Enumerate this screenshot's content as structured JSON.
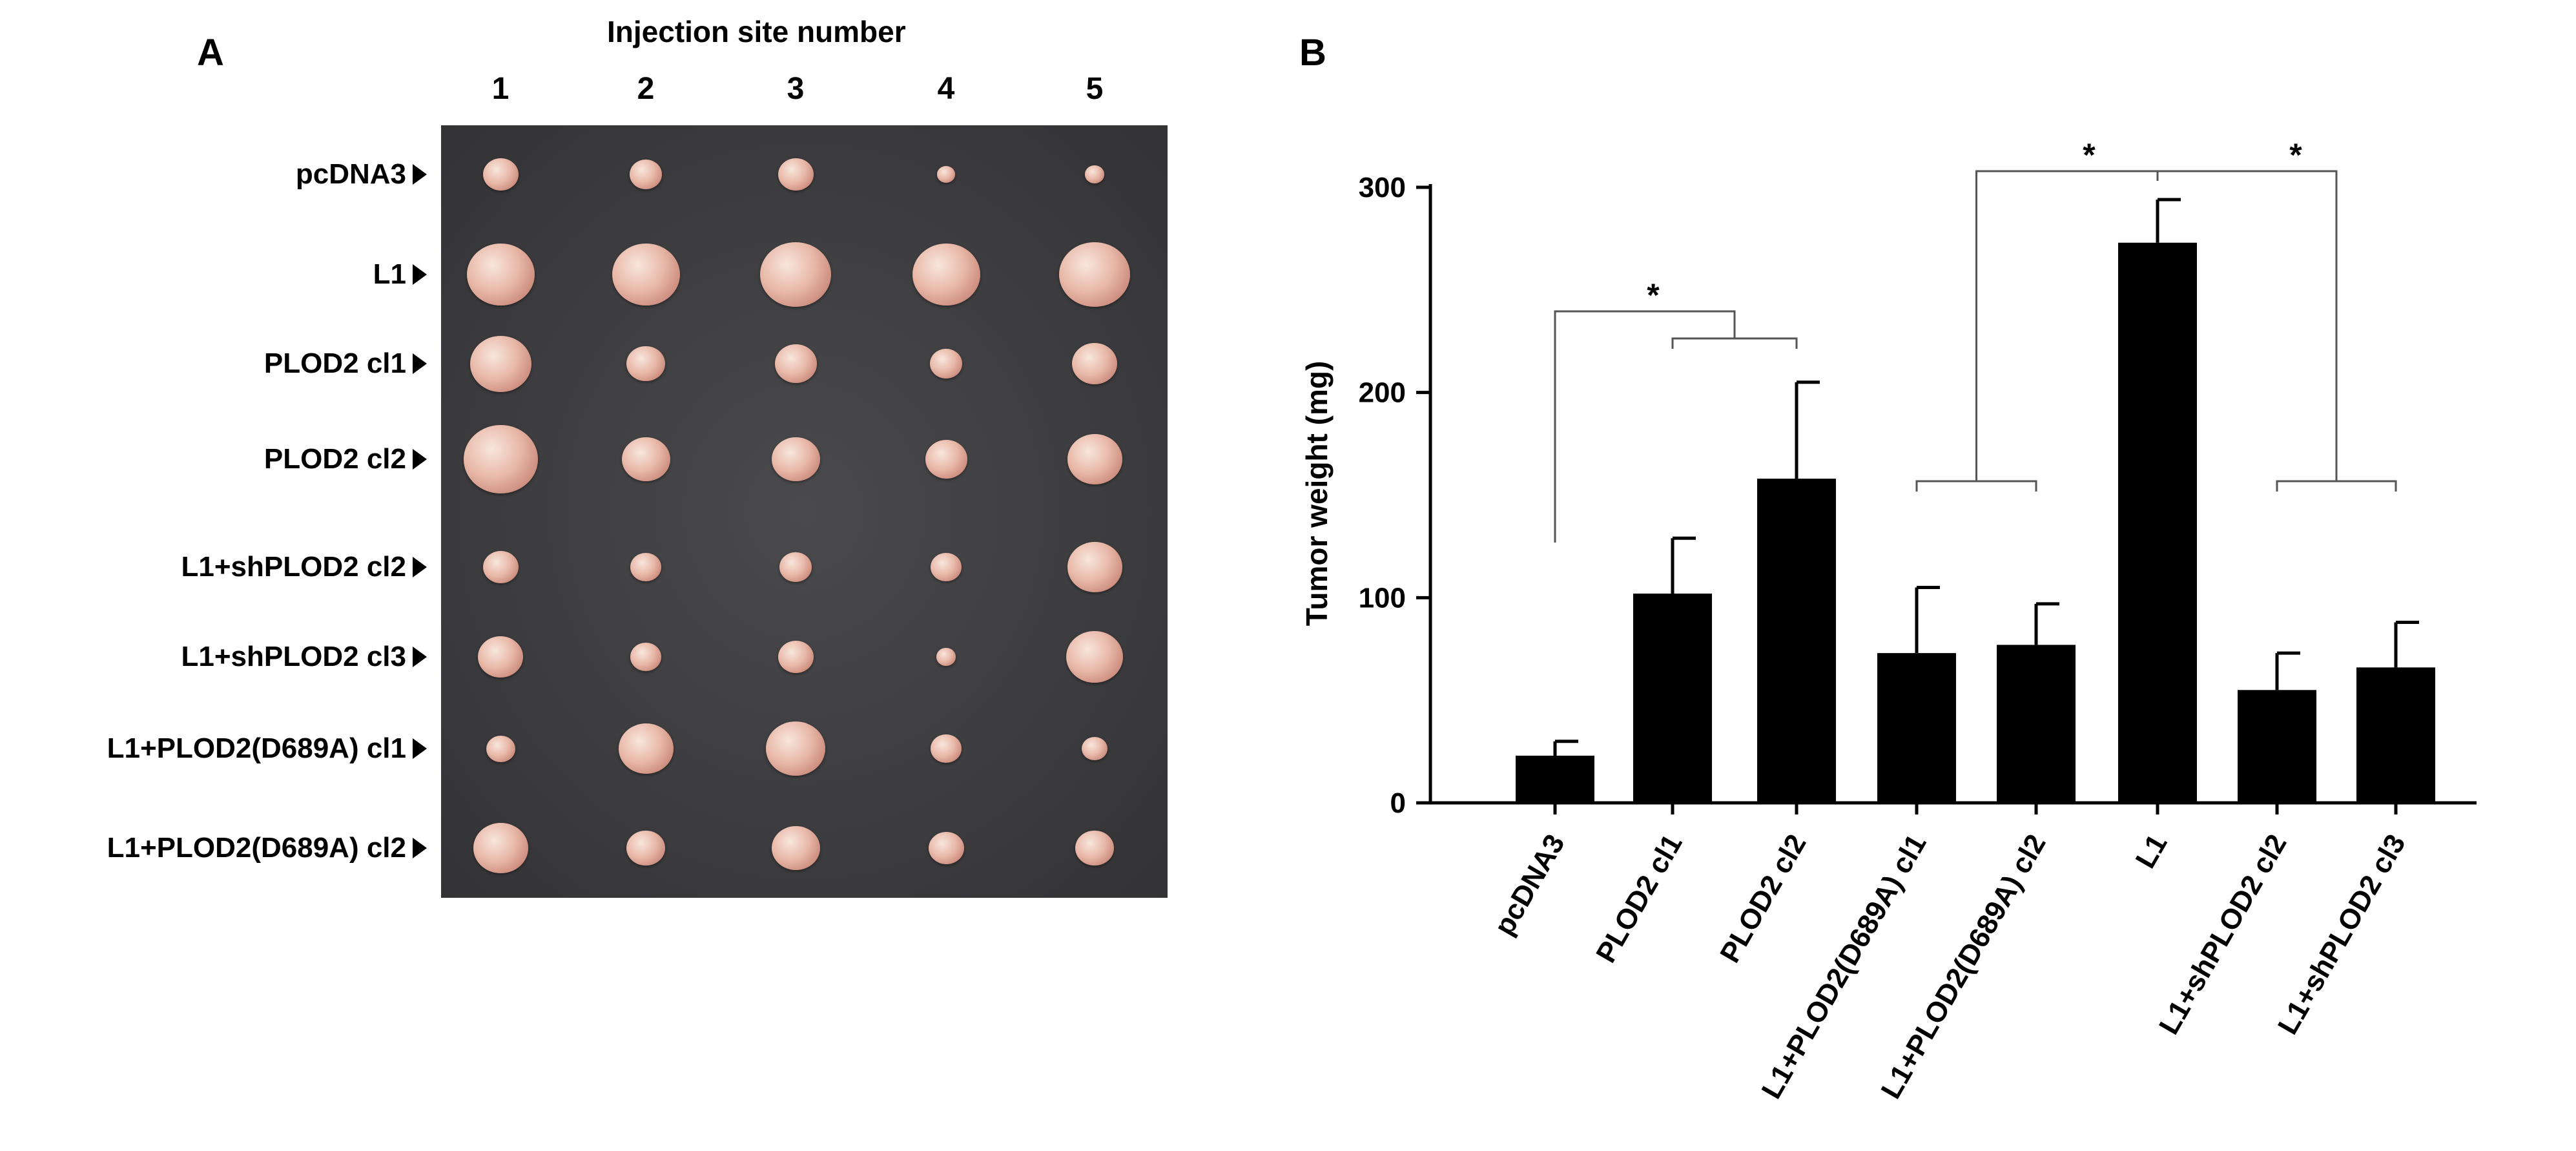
{
  "panel_a": {
    "letter": "A",
    "title": "Injection site number",
    "site_numbers": [
      "1",
      "2",
      "3",
      "4",
      "5"
    ],
    "rows": [
      {
        "label": "pcDNA3",
        "tumor_sizes": [
          0.35,
          0.3,
          0.35,
          0.08,
          0.1
        ]
      },
      {
        "label": "L1",
        "tumor_sizes": [
          0.85,
          0.85,
          0.9,
          0.85,
          0.9
        ]
      },
      {
        "label": "PLOD2 cl1",
        "tumor_sizes": [
          0.75,
          0.4,
          0.45,
          0.3,
          0.5
        ]
      },
      {
        "label": "PLOD2 cl2",
        "tumor_sizes": [
          0.95,
          0.55,
          0.55,
          0.45,
          0.65
        ]
      },
      {
        "label": "L1+shPLOD2 cl2",
        "tumor_sizes": [
          0.35,
          0.28,
          0.3,
          0.28,
          0.65
        ]
      },
      {
        "label": "L1+shPLOD2 cl3",
        "tumor_sizes": [
          0.5,
          0.28,
          0.35,
          0.1,
          0.68
        ]
      },
      {
        "label": "L1+PLOD2(D689A) cl1",
        "tumor_sizes": [
          0.25,
          0.65,
          0.72,
          0.28,
          0.2
        ]
      },
      {
        "label": "L1+PLOD2(D689A) cl2",
        "tumor_sizes": [
          0.65,
          0.4,
          0.55,
          0.35,
          0.4
        ]
      }
    ]
  },
  "panel_b": {
    "letter": "B"
  },
  "chart_data": {
    "type": "bar",
    "ylabel": "Tumor weight (mg)",
    "ylim": [
      0,
      300
    ],
    "yticks": [
      0,
      100,
      200,
      300
    ],
    "categories": [
      "pcDNA3",
      "PLOD2 cl1",
      "PLOD2 cl2",
      "L1+PLOD2(D689A) cl1",
      "L1+PLOD2(D689A) cl2",
      "L1",
      "L1+shPLOD2 cl2",
      "L1+shPLOD2 cl3"
    ],
    "values": [
      23,
      102,
      158,
      73,
      77,
      273,
      55,
      66
    ],
    "errors": [
      7,
      27,
      47,
      32,
      20,
      21,
      18,
      22
    ],
    "bar_color": "#000000",
    "significance": [
      {
        "label": "*",
        "left": [
          0
        ],
        "right": [
          1,
          2
        ]
      },
      {
        "label": "*",
        "left": [
          3,
          4
        ],
        "right": [
          5
        ]
      },
      {
        "label": "*",
        "left": [
          5
        ],
        "right": [
          6,
          7
        ]
      }
    ]
  }
}
